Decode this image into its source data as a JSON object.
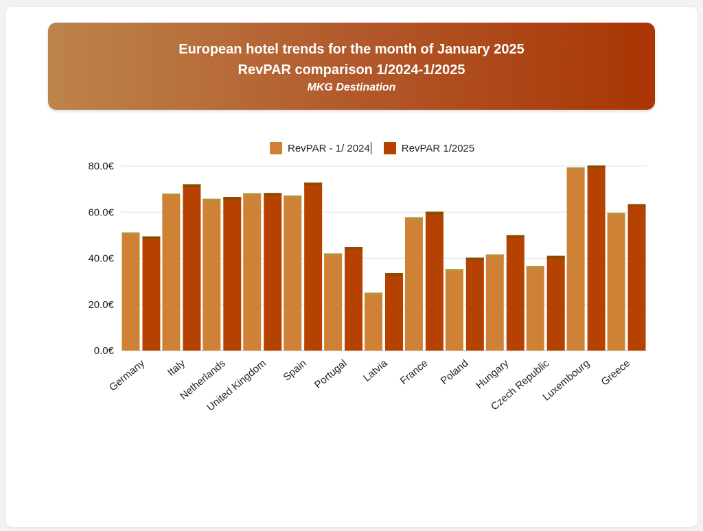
{
  "chart_data": {
    "type": "bar",
    "title": "European hotel trends for the month of January 2025",
    "subtitle": "RevPAR comparison 1/2024-1/2025",
    "source": "MKG Destination",
    "xlabel": "",
    "ylabel": "",
    "ylim": [
      0,
      80
    ],
    "yticks": [
      0,
      20,
      40,
      60,
      80
    ],
    "ytick_labels": [
      "0.0€",
      "20.0€",
      "40.0€",
      "60.0€",
      "80.0€"
    ],
    "grid": true,
    "legend_position": "top-center",
    "categories": [
      "Germany",
      "Italy",
      "Netherlands",
      "United Kingdom",
      "Spain",
      "Portugal",
      "Latvia",
      "France",
      "Poland",
      "Hungary",
      "Czech Republic",
      "Luxembourg",
      "Greece"
    ],
    "series": [
      {
        "name": "RevPAR - 1/ 2024",
        "color": "#cf8236",
        "values": [
          51.2,
          68.0,
          65.8,
          68.2,
          67.2,
          42.1,
          25.1,
          57.8,
          35.3,
          41.7,
          36.6,
          79.4,
          59.7
        ]
      },
      {
        "name": "RevPAR 1/2025",
        "color": "#b54200",
        "values": [
          49.5,
          72.1,
          66.6,
          68.3,
          72.8,
          44.9,
          33.6,
          60.2,
          40.3,
          50.0,
          41.1,
          80.2,
          63.5
        ]
      }
    ]
  }
}
